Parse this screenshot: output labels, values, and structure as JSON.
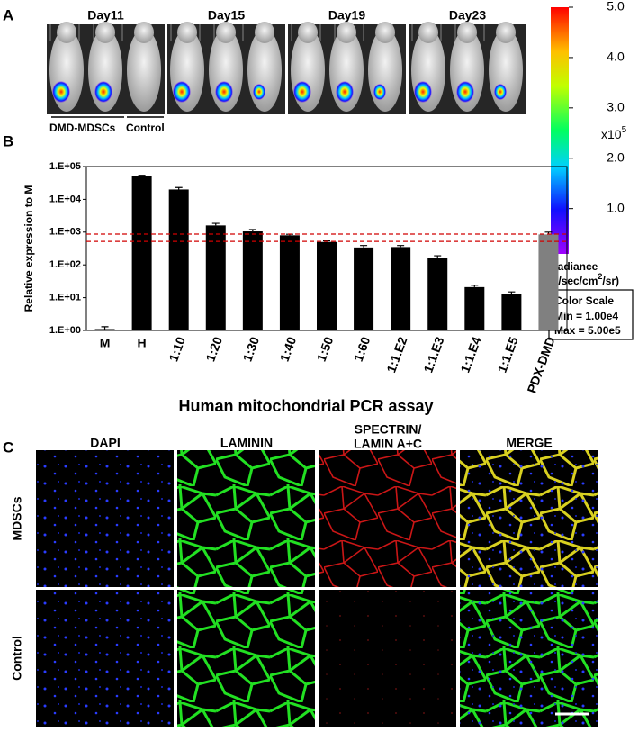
{
  "panel_a": {
    "label": "A",
    "days": [
      "Day11",
      "Day15",
      "Day19",
      "Day23"
    ],
    "groups": [
      "DMD-MDSCs",
      "Control"
    ]
  },
  "colorbar": {
    "lim": [
      0.1,
      5
    ],
    "ticks": [
      {
        "value": 5,
        "label": "5.0"
      },
      {
        "value": 4,
        "label": "4.0"
      },
      {
        "value": 3,
        "label": "3.0"
      },
      {
        "value": 2,
        "label": "2.0"
      },
      {
        "value": 1,
        "label": "1.0"
      }
    ],
    "unit": "x10",
    "unit_exponent": "5",
    "title": "Radiance",
    "units": [
      "(p/sec/cm",
      "2",
      "/sr)"
    ],
    "scale_box": {
      "title": "Color Scale",
      "min": "Min = 1.00e4",
      "max": "Max = 5.00e5"
    }
  },
  "panel_b": {
    "label": "B"
  },
  "chart_data": {
    "type": "bar",
    "ylabel": "Relative expression to M",
    "xlabel": "Human mitochondrial PCR assay",
    "categories": [
      "M",
      "H",
      "1:10",
      "1:20",
      "1:30",
      "1:40",
      "1:50",
      "1:60",
      "1:1.E2",
      "1:1.E3",
      "1:1.E4",
      "1:1.E5",
      "PDX-DMD"
    ],
    "values": [
      1.1,
      50000,
      20000,
      1600,
      1050,
      800,
      500,
      340,
      350,
      165,
      21,
      13,
      850
    ],
    "errors": [
      0.2,
      4000,
      3000,
      250,
      150,
      60,
      40,
      50,
      40,
      25,
      3,
      2,
      150
    ],
    "colors": [
      "#000000",
      "#000000",
      "#000000",
      "#000000",
      "#000000",
      "#000000",
      "#000000",
      "#000000",
      "#000000",
      "#000000",
      "#000000",
      "#000000",
      "#808080"
    ],
    "ylim": [
      1,
      100000
    ],
    "log_scale": true,
    "yticks": [
      {
        "value": 1,
        "label": "1.E+00"
      },
      {
        "value": 10,
        "label": "1.E+01"
      },
      {
        "value": 100,
        "label": "1.E+02"
      },
      {
        "value": 1000,
        "label": "1.E+03"
      },
      {
        "value": 10000,
        "label": "1.E+04"
      },
      {
        "value": 100000,
        "label": "1.E+05"
      }
    ],
    "reference_lines": [
      870,
      520
    ],
    "reference_color": "#d00000"
  },
  "panel_c": {
    "label": "C",
    "columns": [
      {
        "lines": [
          "DAPI"
        ],
        "color": "#1a1ad0"
      },
      {
        "lines": [
          "LAMININ"
        ],
        "color": "#1a9a1a"
      },
      {
        "lines": [
          "SPECTRIN/",
          "LAMIN A+C"
        ],
        "color": "#e00000"
      },
      {
        "lines": [
          "MERGE"
        ],
        "color": "#000000"
      }
    ],
    "rows": [
      "MDSCs",
      "Control"
    ]
  }
}
